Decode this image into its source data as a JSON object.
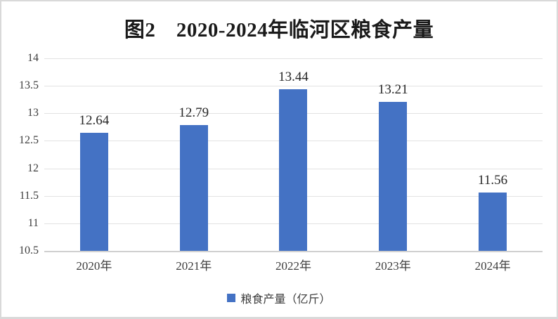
{
  "title": "图2　2020-2024年临河区粮食产量",
  "chart_data": {
    "type": "bar",
    "title": "图2　2020-2024年临河区粮食产量",
    "categories": [
      "2020年",
      "2021年",
      "2022年",
      "2023年",
      "2024年"
    ],
    "values": [
      12.64,
      12.79,
      13.44,
      13.21,
      11.56
    ],
    "data_labels": [
      "12.64",
      "12.79",
      "13.44",
      "13.21",
      "11.56"
    ],
    "series_name": "粮食产量（亿斤）",
    "legend": "粮食产量（亿斤）",
    "legend_position": "bottom",
    "xlabel": "",
    "ylabel": "",
    "ylim": [
      10.5,
      14
    ],
    "y_tick_values": [
      14,
      13.5,
      13,
      12.5,
      12,
      11.5,
      11,
      10.5
    ],
    "y_ticks": [
      "14",
      "13.5",
      "13",
      "12.5",
      "12",
      "11.5",
      "11",
      "10.5"
    ],
    "grid": true,
    "colors": {
      "bar": "#4472C4",
      "gridline": "#E2E2E2",
      "axis_line": "#D0D0D0",
      "label_text": "#262626",
      "tick_text": "#3D3D3D",
      "title_text": "#1A1A1A",
      "frame_border": "#D9D9D9"
    }
  }
}
